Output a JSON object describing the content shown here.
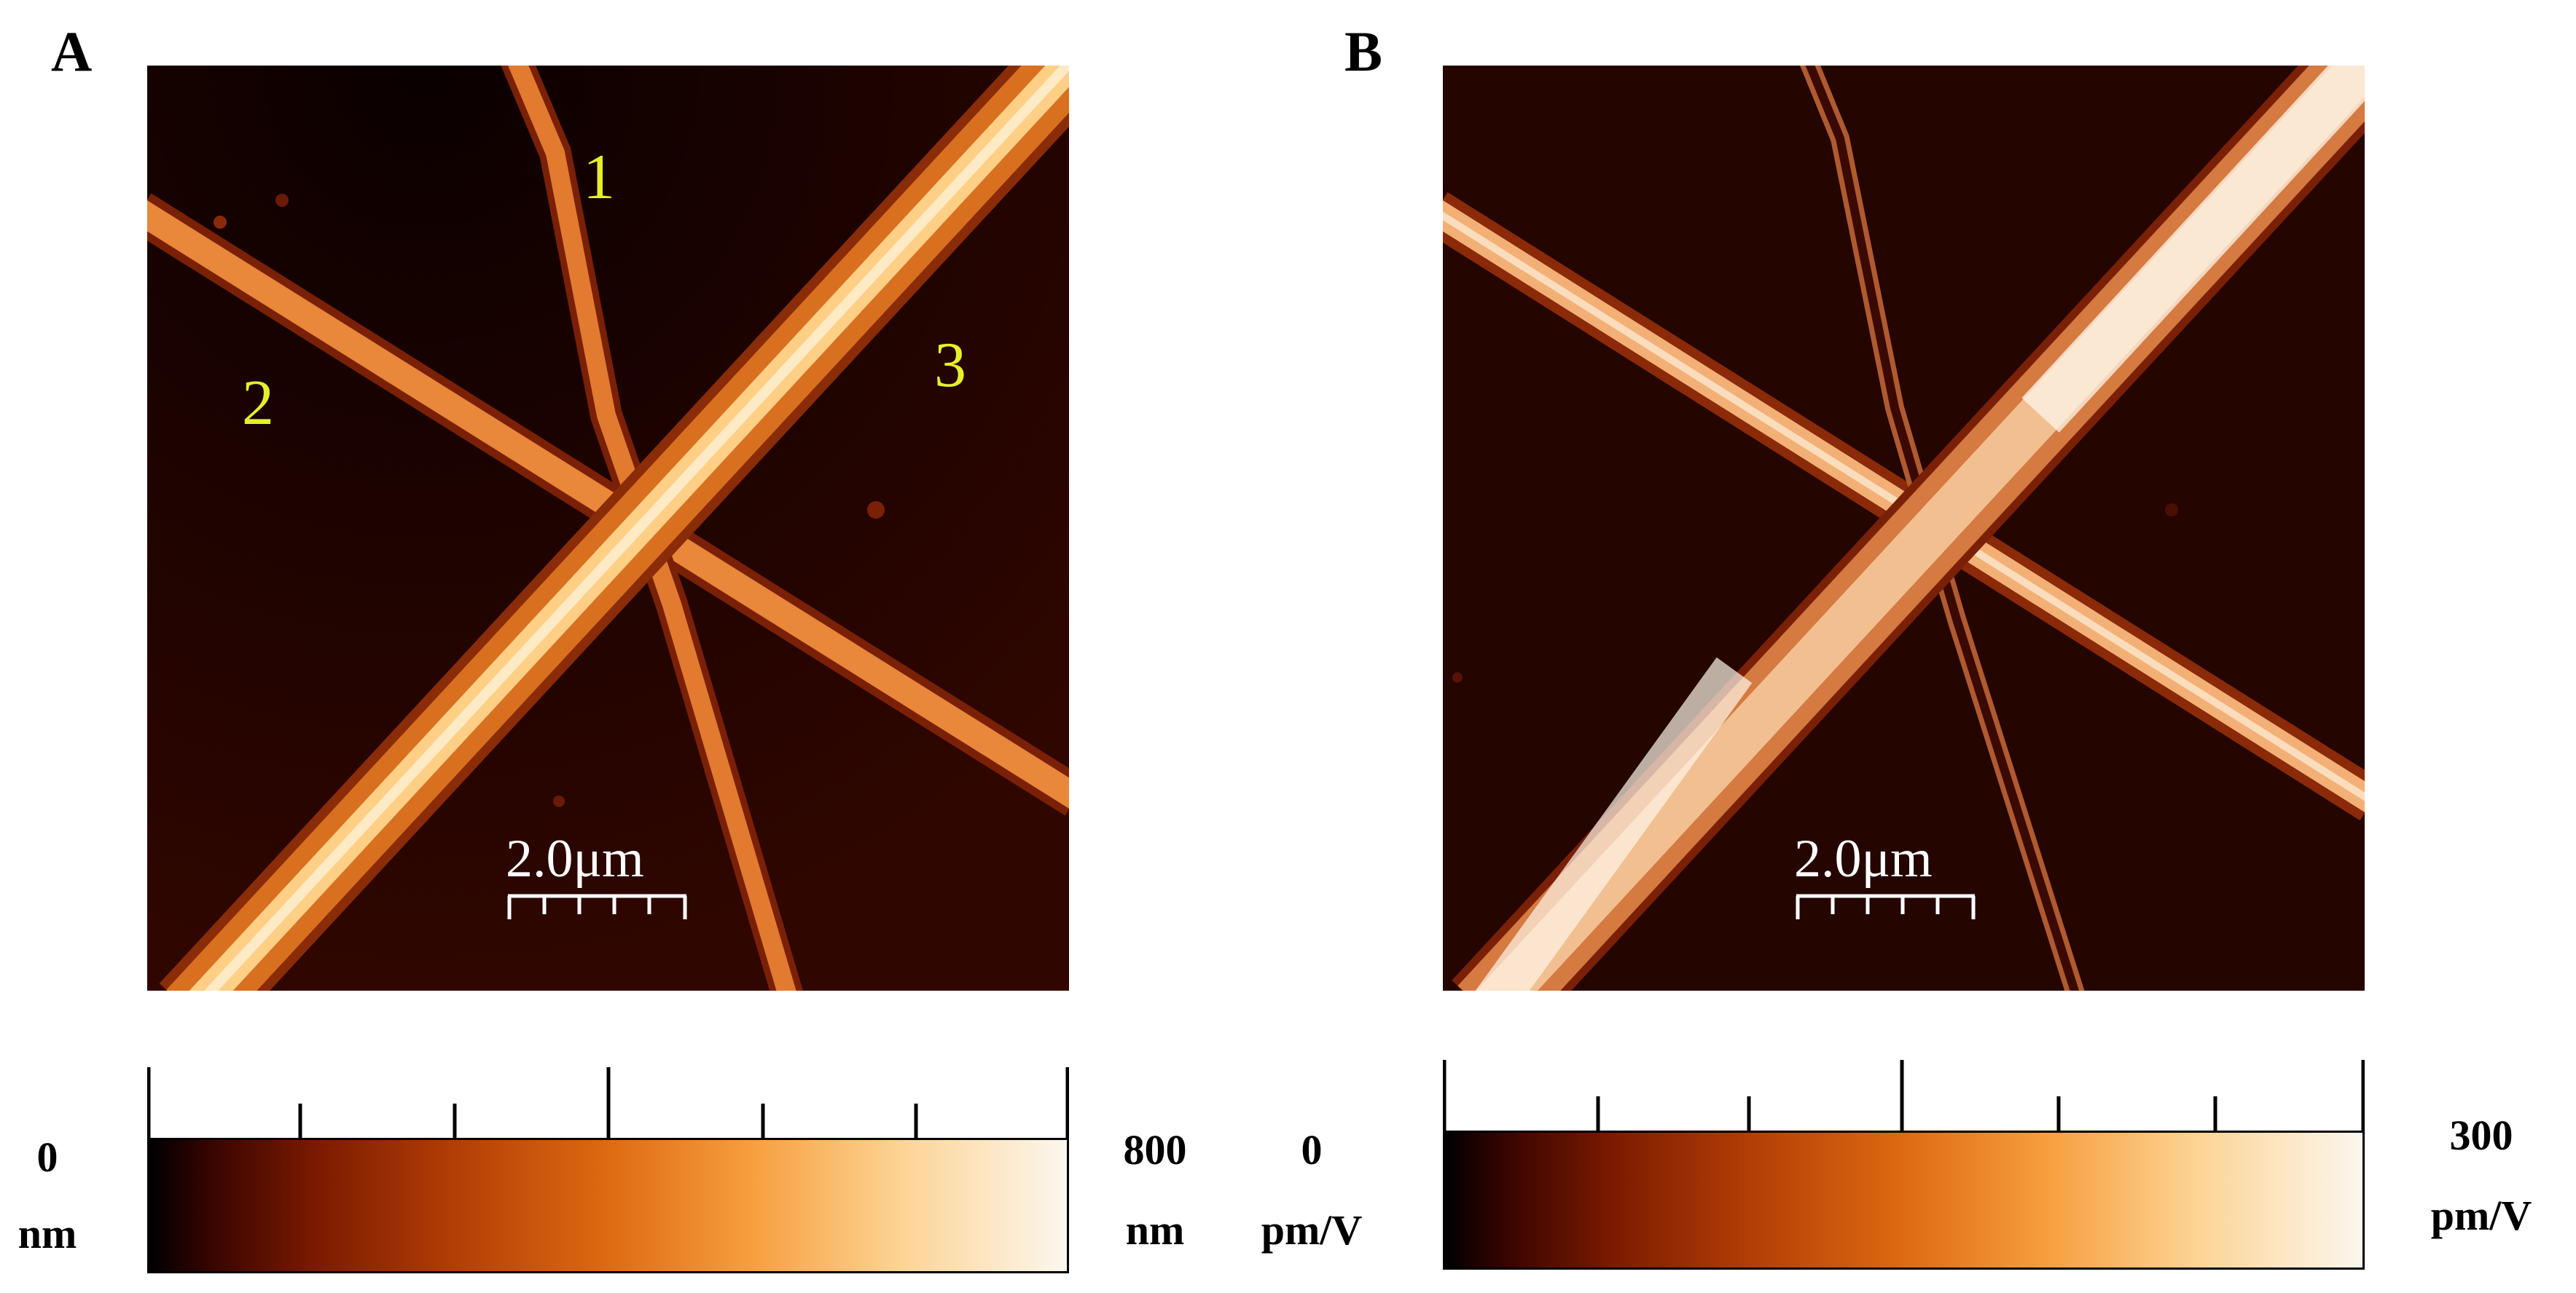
{
  "panels": [
    {
      "letter": "A",
      "fiber_labels": [
        "1",
        "2",
        "3"
      ],
      "scale_bar": "2.0μm",
      "colorbar": {
        "min_value": "0",
        "min_unit": "nm",
        "max_value": "800",
        "max_unit": "nm"
      }
    },
    {
      "letter": "B",
      "scale_bar": "2.0μm",
      "colorbar": {
        "min_value": "0",
        "min_unit": "pm/V",
        "max_value": "300",
        "max_unit": "pm/V"
      }
    }
  ],
  "colors": {
    "background": "#1e0300",
    "fiber_mid": "#e07a2a",
    "fiber_bright": "#fff4d8",
    "label_yellow": "#e6f02a"
  }
}
